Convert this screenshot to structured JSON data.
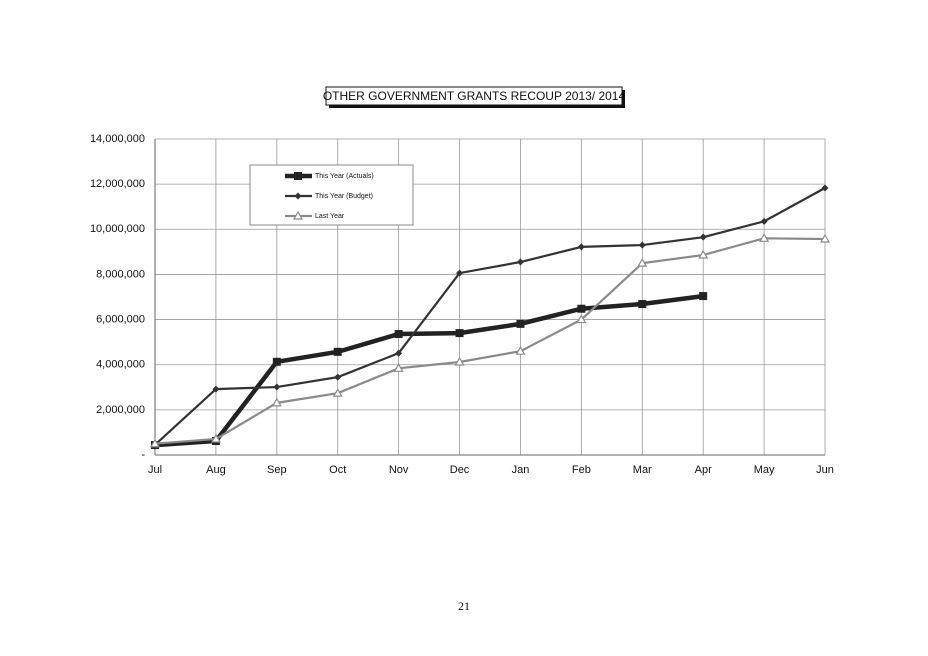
{
  "chart_data": {
    "type": "line",
    "title": "OTHER GOVERNMENT GRANTS  RECOUP 2013/ 2014",
    "categories": [
      "Jul",
      "Aug",
      "Sep",
      "Oct",
      "Nov",
      "Dec",
      "Jan",
      "Feb",
      "Mar",
      "Apr",
      "May",
      "Jun"
    ],
    "series": [
      {
        "name": "This Year (Actuals)",
        "color": "#222222",
        "marker": "square",
        "values": [
          440000,
          620000,
          4130000,
          4570000,
          5360000,
          5400000,
          5810000,
          6480000,
          6690000,
          7040000,
          null,
          null
        ]
      },
      {
        "name": "This Year (Budget)",
        "color": "#333333",
        "marker": "diamond",
        "values": [
          450000,
          2920000,
          3010000,
          3450000,
          4510000,
          8060000,
          8550000,
          9220000,
          9300000,
          9650000,
          10350000,
          11830000
        ]
      },
      {
        "name": "Last Year",
        "color": "#8a8a8a",
        "marker": "triangle",
        "values": [
          500000,
          710000,
          2310000,
          2740000,
          3840000,
          4120000,
          4600000,
          6000000,
          8500000,
          8860000,
          9600000,
          9570000
        ]
      }
    ],
    "ylim": [
      0,
      14000000
    ],
    "yticks": [
      {
        "value": 0,
        "label": "-"
      },
      {
        "value": 2000000,
        "label": "2,000,000"
      },
      {
        "value": 4000000,
        "label": "4,000,000"
      },
      {
        "value": 6000000,
        "label": "6,000,000"
      },
      {
        "value": 8000000,
        "label": "8,000,000"
      },
      {
        "value": 10000000,
        "label": "10,000,000"
      },
      {
        "value": 12000000,
        "label": "12,000,000"
      },
      {
        "value": 14000000,
        "label": "14,000,000"
      }
    ],
    "grid": true,
    "legend": "upper left"
  },
  "page_number": "21"
}
